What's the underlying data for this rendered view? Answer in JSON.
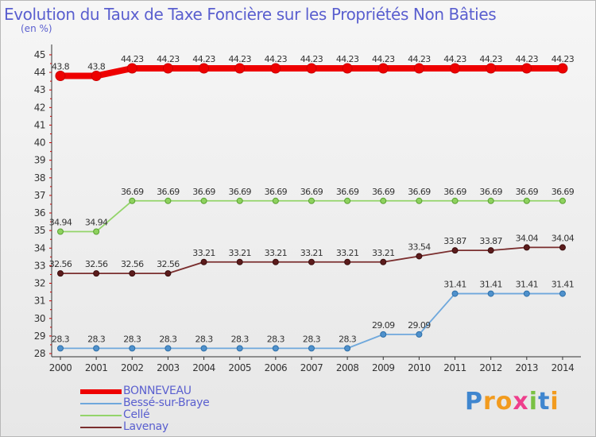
{
  "chart_data": {
    "type": "line",
    "title": "Evolution du Taux de Taxe Foncière sur les Propriétés Non Bâties",
    "ylabel": "(en %)",
    "xlabel": "",
    "ylim": [
      28,
      45
    ],
    "yticks": [
      "28",
      "29",
      "30",
      "31",
      "32",
      "33",
      "34",
      "35",
      "36",
      "37",
      "38",
      "39",
      "40",
      "41",
      "42",
      "43",
      "44",
      "45"
    ],
    "categories": [
      "2000",
      "2001",
      "2002",
      "2003",
      "2004",
      "2005",
      "2006",
      "2007",
      "2008",
      "2009",
      "2010",
      "2011",
      "2012",
      "2013",
      "2014"
    ],
    "series": [
      {
        "name": "BONNEVEAU",
        "color": "#ee0000",
        "values": [
          43.8,
          43.8,
          44.23,
          44.23,
          44.23,
          44.23,
          44.23,
          44.23,
          44.23,
          44.23,
          44.23,
          44.23,
          44.23,
          44.23,
          44.23
        ],
        "labels": [
          "43.8",
          "43.8",
          "44.23",
          "44.23",
          "44.23",
          "44.23",
          "44.23",
          "44.23",
          "44.23",
          "44.23",
          "44.23",
          "44.23",
          "44.23",
          "44.23",
          "44.23"
        ]
      },
      {
        "name": "Bessé-sur-Braye",
        "color": "#6fa8dc",
        "values": [
          28.3,
          28.3,
          28.3,
          28.3,
          28.3,
          28.3,
          28.3,
          28.3,
          28.3,
          29.09,
          29.09,
          31.41,
          31.41,
          31.41,
          31.41
        ],
        "labels": [
          "28.3",
          "28.3",
          "28.3",
          "28.3",
          "28.3",
          "28.3",
          "28.3",
          "28.3",
          "28.3",
          "29.09",
          "29.09",
          "31.41",
          "31.41",
          "31.41",
          "31.41"
        ]
      },
      {
        "name": "Cellé",
        "color": "#93d46a",
        "values": [
          34.94,
          34.94,
          36.69,
          36.69,
          36.69,
          36.69,
          36.69,
          36.69,
          36.69,
          36.69,
          36.69,
          36.69,
          36.69,
          36.69,
          36.69
        ],
        "labels": [
          "34.94",
          "34.94",
          "36.69",
          "36.69",
          "36.69",
          "36.69",
          "36.69",
          "36.69",
          "36.69",
          "36.69",
          "36.69",
          "36.69",
          "36.69",
          "36.69",
          "36.69"
        ]
      },
      {
        "name": "Lavenay",
        "color": "#7a2e2e",
        "values": [
          32.56,
          32.56,
          32.56,
          32.56,
          33.21,
          33.21,
          33.21,
          33.21,
          33.21,
          33.21,
          33.54,
          33.87,
          33.87,
          34.04,
          34.04
        ],
        "labels": [
          "32.56",
          "32.56",
          "32.56",
          "32.56",
          "33.21",
          "33.21",
          "33.21",
          "33.21",
          "33.21",
          "33.21",
          "33.54",
          "33.87",
          "33.87",
          "34.04",
          "34.04"
        ]
      }
    ],
    "legend_position": "bottom-left",
    "grid": false
  },
  "logo": {
    "text": "Proxiti",
    "letters": [
      "P",
      "r",
      "o",
      "x",
      "i",
      "t",
      "i"
    ]
  }
}
